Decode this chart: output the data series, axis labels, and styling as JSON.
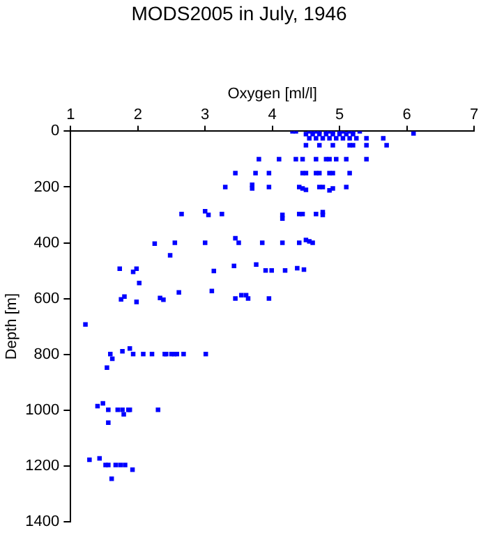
{
  "chart_data": {
    "type": "scatter",
    "title": "MODS2005 in July, 1946",
    "xlabel": "Oxygen [ml/l]",
    "ylabel": "Depth [m]",
    "xlim": [
      1,
      7
    ],
    "xticks": [
      1,
      2,
      3,
      4,
      5,
      6,
      7
    ],
    "ylim": [
      1400,
      0
    ],
    "yticks": [
      0,
      200,
      400,
      600,
      800,
      1000,
      1200,
      1400
    ],
    "grid": false,
    "legend": false,
    "marker": "square",
    "series": [
      {
        "color": "#0000ff",
        "x": [
          4.3,
          4.35,
          4.55,
          4.6,
          4.65,
          4.7,
          4.8,
          4.85,
          4.9,
          5.0,
          5.05,
          5.15,
          5.2,
          5.3,
          6.1,
          4.5,
          4.6,
          4.7,
          4.8,
          4.9,
          5.0,
          5.1,
          5.2,
          4.55,
          4.65,
          4.75,
          4.85,
          4.95,
          5.05,
          5.15,
          5.25,
          5.4,
          5.65,
          4.5,
          4.7,
          4.9,
          5.15,
          5.2,
          5.4,
          5.7,
          3.8,
          4.1,
          4.35,
          4.45,
          4.65,
          4.8,
          4.85,
          4.95,
          5.1,
          5.4,
          3.45,
          3.75,
          3.95,
          4.45,
          4.5,
          4.65,
          4.7,
          4.85,
          4.9,
          5.15,
          3.3,
          3.7,
          3.7,
          3.95,
          4.4,
          4.45,
          4.5,
          4.7,
          4.75,
          4.85,
          4.9,
          5.1,
          2.65,
          3.0,
          3.05,
          3.25,
          4.15,
          4.15,
          4.4,
          4.45,
          4.65,
          4.75,
          4.75,
          2.25,
          2.55,
          3.0,
          3.45,
          3.5,
          3.85,
          4.15,
          4.4,
          4.5,
          4.55,
          4.6,
          2.48,
          1.73,
          1.93,
          1.98,
          2.02,
          3.13,
          3.43,
          3.76,
          3.9,
          3.99,
          4.19,
          4.37,
          4.47,
          1.75,
          1.8,
          1.98,
          2.33,
          2.38,
          2.61,
          3.1,
          3.45,
          3.54,
          3.61,
          3.64,
          3.95,
          1.22,
          1.59,
          1.62,
          1.54,
          1.77,
          1.88,
          1.93,
          2.08,
          2.21,
          2.4,
          2.42,
          2.5,
          2.54,
          2.58,
          2.68,
          3.01,
          1.4,
          1.48,
          1.56,
          1.56,
          1.7,
          1.77,
          1.79,
          1.86,
          1.88,
          2.3,
          1.28,
          1.43,
          1.52,
          1.56,
          1.67,
          1.74,
          1.81,
          1.92,
          1.61
        ],
        "values": [
          0,
          0,
          0,
          0,
          0,
          0,
          0,
          0,
          0,
          0,
          0,
          0,
          0,
          0,
          8,
          10,
          10,
          10,
          10,
          10,
          10,
          10,
          10,
          25,
          25,
          25,
          25,
          25,
          25,
          25,
          25,
          25,
          25,
          50,
          50,
          50,
          50,
          50,
          50,
          50,
          100,
          100,
          100,
          100,
          100,
          100,
          100,
          100,
          100,
          100,
          150,
          150,
          150,
          150,
          150,
          150,
          150,
          150,
          150,
          150,
          200,
          192,
          205,
          200,
          200,
          205,
          210,
          200,
          200,
          212,
          205,
          200,
          297,
          287,
          300,
          297,
          300,
          313,
          297,
          297,
          297,
          290,
          300,
          403,
          400,
          400,
          384,
          400,
          400,
          400,
          400,
          390,
          395,
          400,
          445,
          493,
          504,
          493,
          544,
          501,
          483,
          478,
          499,
          499,
          499,
          491,
          496,
          603,
          593,
          612,
          598,
          604,
          578,
          573,
          600,
          588,
          588,
          600,
          600,
          693,
          799,
          816,
          848,
          789,
          779,
          799,
          799,
          799,
          799,
          799,
          799,
          799,
          799,
          799,
          799,
          986,
          976,
          999,
          1045,
          999,
          999,
          1015,
          999,
          999,
          999,
          1178,
          1173,
          1197,
          1197,
          1197,
          1197,
          1197,
          1214,
          1246
        ]
      }
    ]
  }
}
